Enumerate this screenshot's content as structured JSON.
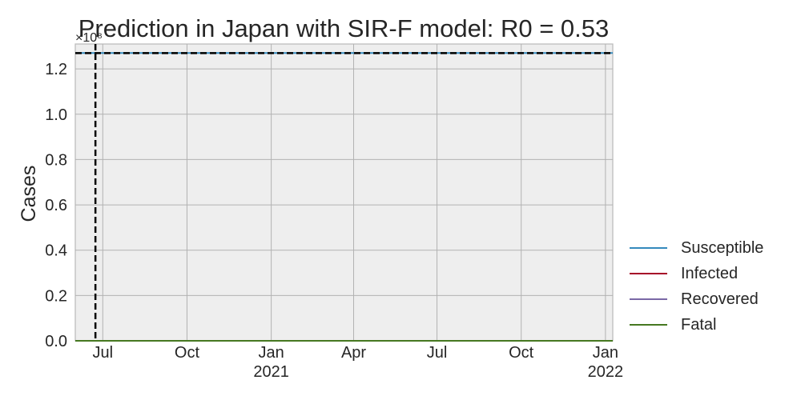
{
  "chart_data": {
    "type": "line",
    "title": "Prediction in Japan with SIR-F model: R0 = 0.53",
    "xlabel": "",
    "ylabel": "Cases",
    "y_multiplier_label": "×10⁸",
    "y_scale": 100000000,
    "xlim": [
      "2020-06-01",
      "2022-01-09"
    ],
    "ylim": [
      0,
      1.31
    ],
    "y_ticks": [
      0.0,
      0.2,
      0.4,
      0.6,
      0.8,
      1.0,
      1.2
    ],
    "x_ticks": [
      {
        "date": "2020-07-01",
        "label": "Jul",
        "sub": ""
      },
      {
        "date": "2020-10-01",
        "label": "Oct",
        "sub": ""
      },
      {
        "date": "2021-01-01",
        "label": "Jan",
        "sub": "2021"
      },
      {
        "date": "2021-04-01",
        "label": "Apr",
        "sub": ""
      },
      {
        "date": "2021-07-01",
        "label": "Jul",
        "sub": ""
      },
      {
        "date": "2021-10-01",
        "label": "Oct",
        "sub": ""
      },
      {
        "date": "2022-01-01",
        "label": "Jan",
        "sub": "2022"
      }
    ],
    "horizontal_line": 1.27,
    "vertical_line": "2020-06-23",
    "grid": true,
    "legend_position": "outside right, bottom",
    "series": [
      {
        "name": "Susceptible",
        "color": "#348abd",
        "x": [
          "2020-06-01",
          "2022-01-09"
        ],
        "y": [
          1.27,
          1.27
        ]
      },
      {
        "name": "Infected",
        "color": "#a60628",
        "x": [
          "2020-06-01",
          "2022-01-09"
        ],
        "y": [
          0.0,
          0.0
        ]
      },
      {
        "name": "Recovered",
        "color": "#7a68a6",
        "x": [
          "2020-06-01",
          "2022-01-09"
        ],
        "y": [
          0.0,
          0.0
        ]
      },
      {
        "name": "Fatal",
        "color": "#467821",
        "x": [
          "2020-06-01",
          "2022-01-09"
        ],
        "y": [
          0.0,
          0.0
        ]
      }
    ]
  }
}
